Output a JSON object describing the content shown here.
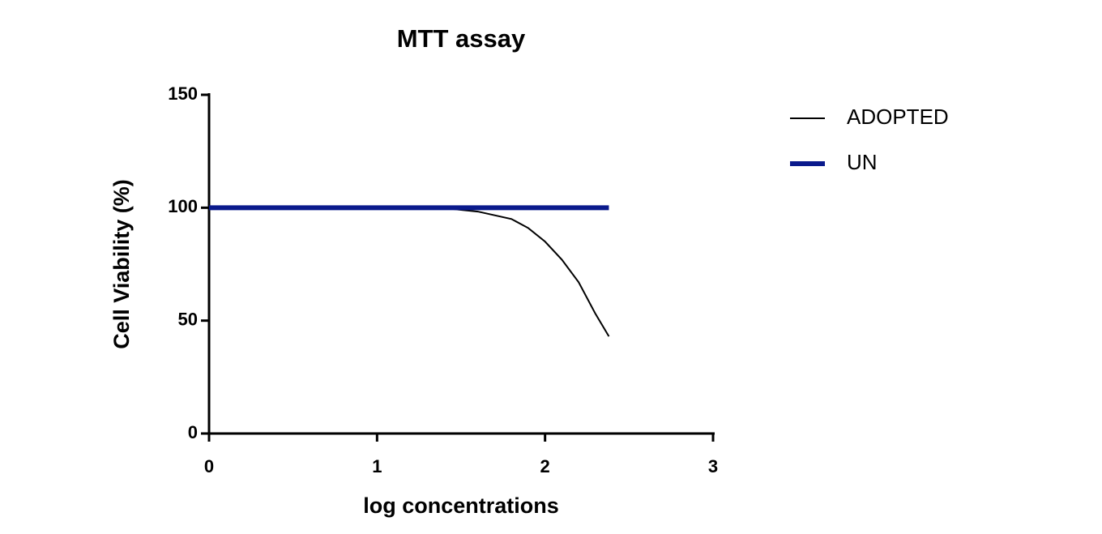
{
  "chart_data": {
    "type": "line",
    "title": "MTT assay",
    "x_label": "log concentrations",
    "y_label": "Cell Viability (%)",
    "x": [
      0,
      0.5,
      1,
      1.2,
      1.4,
      1.6,
      1.8,
      1.9,
      2.0,
      2.1,
      2.2,
      2.3,
      2.38
    ],
    "series": [
      {
        "name": "ADOPTED",
        "color": "#000000",
        "values": [
          100,
          100,
          100,
          100,
          99.8,
          98.3,
          95,
          91,
          85,
          77,
          67,
          53,
          43
        ]
      },
      {
        "name": "UN",
        "color": "#0a1a8c",
        "values": [
          100,
          100,
          100,
          100,
          100,
          100,
          100,
          100,
          100,
          100,
          100,
          100,
          100
        ]
      }
    ],
    "xlim": [
      0,
      3
    ],
    "xticks": [
      0,
      1,
      2,
      3
    ],
    "ylim": [
      0,
      150
    ],
    "yticks": [
      0,
      50,
      100,
      150
    ],
    "grid": false,
    "legend": "right"
  }
}
